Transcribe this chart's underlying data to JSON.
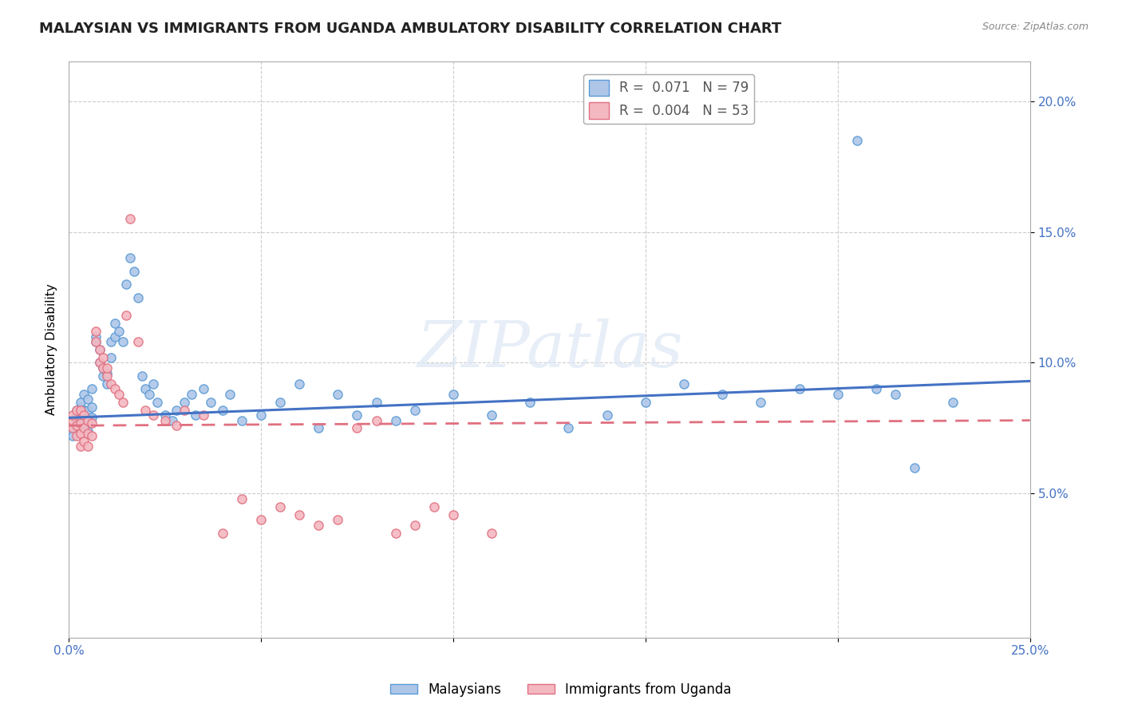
{
  "title": "MALAYSIAN VS IMMIGRANTS FROM UGANDA AMBULATORY DISABILITY CORRELATION CHART",
  "source": "Source: ZipAtlas.com",
  "ylabel": "Ambulatory Disability",
  "xlim": [
    0.0,
    0.25
  ],
  "ylim": [
    -0.005,
    0.215
  ],
  "yticks": [
    0.05,
    0.1,
    0.15,
    0.2
  ],
  "ytick_labels": [
    "5.0%",
    "10.0%",
    "15.0%",
    "20.0%"
  ],
  "xticks": [
    0.0,
    0.05,
    0.1,
    0.15,
    0.2,
    0.25
  ],
  "xtick_labels": [
    "0.0%",
    "",
    "",
    "",
    "",
    "25.0%"
  ],
  "watermark": "ZIPatlas",
  "legend_items": [
    {
      "label": "R =  0.071   N = 79",
      "color": "#aec6e8"
    },
    {
      "label": "R =  0.004   N = 53",
      "color": "#f4b8c1"
    }
  ],
  "malaysian_color": "#aec6e8",
  "malaysian_edge": "#5b9bd5",
  "uganda_color": "#f4b8c1",
  "uganda_edge": "#e07080",
  "background_color": "#ffffff",
  "grid_color": "#cccccc",
  "title_fontsize": 13,
  "axis_label_fontsize": 11,
  "tick_fontsize": 11,
  "legend_fontsize": 12,
  "malaysian_x": [
    0.001,
    0.001,
    0.002,
    0.002,
    0.002,
    0.003,
    0.003,
    0.003,
    0.003,
    0.004,
    0.004,
    0.004,
    0.004,
    0.005,
    0.005,
    0.005,
    0.005,
    0.006,
    0.006,
    0.006,
    0.007,
    0.007,
    0.008,
    0.008,
    0.009,
    0.009,
    0.01,
    0.01,
    0.011,
    0.011,
    0.012,
    0.012,
    0.013,
    0.014,
    0.015,
    0.016,
    0.017,
    0.018,
    0.019,
    0.02,
    0.021,
    0.022,
    0.023,
    0.025,
    0.027,
    0.028,
    0.03,
    0.032,
    0.033,
    0.035,
    0.037,
    0.04,
    0.042,
    0.045,
    0.05,
    0.055,
    0.06,
    0.065,
    0.07,
    0.075,
    0.08,
    0.085,
    0.09,
    0.1,
    0.11,
    0.12,
    0.13,
    0.14,
    0.15,
    0.16,
    0.17,
    0.18,
    0.19,
    0.2,
    0.205,
    0.21,
    0.215,
    0.22,
    0.23
  ],
  "malaysian_y": [
    0.075,
    0.072,
    0.078,
    0.08,
    0.082,
    0.076,
    0.079,
    0.083,
    0.085,
    0.077,
    0.08,
    0.082,
    0.088,
    0.074,
    0.078,
    0.082,
    0.086,
    0.079,
    0.083,
    0.09,
    0.108,
    0.11,
    0.1,
    0.105,
    0.095,
    0.098,
    0.092,
    0.096,
    0.102,
    0.108,
    0.11,
    0.115,
    0.112,
    0.108,
    0.13,
    0.14,
    0.135,
    0.125,
    0.095,
    0.09,
    0.088,
    0.092,
    0.085,
    0.08,
    0.078,
    0.082,
    0.085,
    0.088,
    0.08,
    0.09,
    0.085,
    0.082,
    0.088,
    0.078,
    0.08,
    0.085,
    0.092,
    0.075,
    0.088,
    0.08,
    0.085,
    0.078,
    0.082,
    0.088,
    0.08,
    0.085,
    0.075,
    0.08,
    0.085,
    0.092,
    0.088,
    0.085,
    0.09,
    0.088,
    0.185,
    0.09,
    0.088,
    0.06,
    0.085
  ],
  "uganda_x": [
    0.001,
    0.001,
    0.001,
    0.002,
    0.002,
    0.002,
    0.003,
    0.003,
    0.003,
    0.003,
    0.004,
    0.004,
    0.004,
    0.005,
    0.005,
    0.005,
    0.006,
    0.006,
    0.007,
    0.007,
    0.008,
    0.008,
    0.009,
    0.009,
    0.01,
    0.01,
    0.011,
    0.012,
    0.013,
    0.014,
    0.015,
    0.016,
    0.018,
    0.02,
    0.022,
    0.025,
    0.028,
    0.03,
    0.035,
    0.04,
    0.045,
    0.05,
    0.055,
    0.06,
    0.065,
    0.07,
    0.075,
    0.08,
    0.085,
    0.09,
    0.095,
    0.1,
    0.11
  ],
  "uganda_y": [
    0.075,
    0.078,
    0.08,
    0.072,
    0.076,
    0.082,
    0.068,
    0.073,
    0.077,
    0.082,
    0.07,
    0.075,
    0.08,
    0.068,
    0.073,
    0.078,
    0.072,
    0.077,
    0.108,
    0.112,
    0.1,
    0.105,
    0.098,
    0.102,
    0.095,
    0.098,
    0.092,
    0.09,
    0.088,
    0.085,
    0.118,
    0.155,
    0.108,
    0.082,
    0.08,
    0.078,
    0.076,
    0.082,
    0.08,
    0.035,
    0.048,
    0.04,
    0.045,
    0.042,
    0.038,
    0.04,
    0.075,
    0.078,
    0.035,
    0.038,
    0.045,
    0.042,
    0.035
  ]
}
